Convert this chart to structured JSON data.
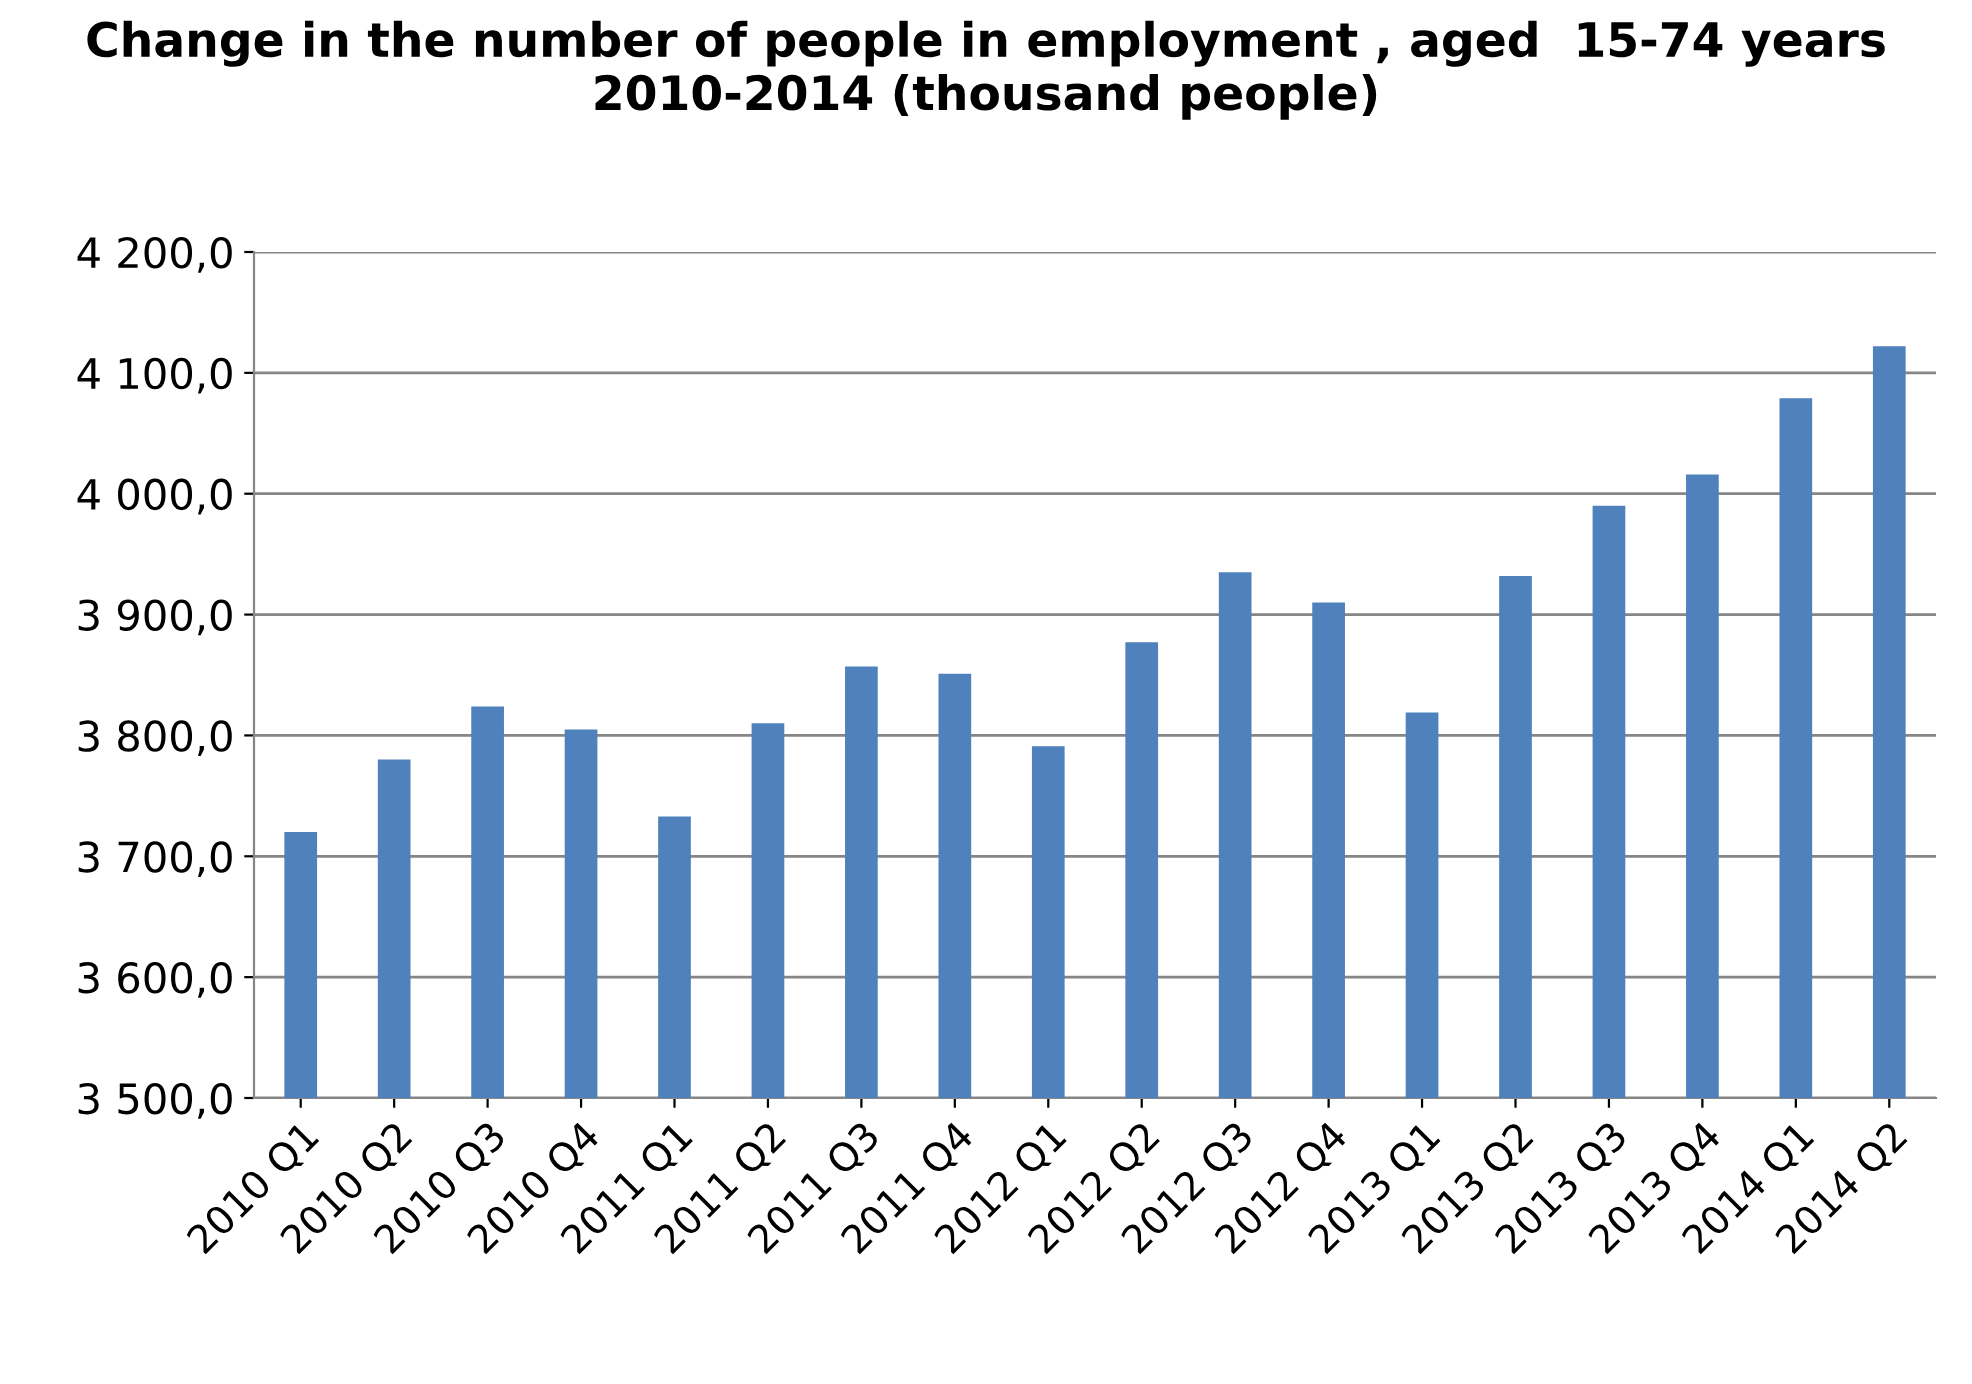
{
  "chart_data": {
    "type": "bar",
    "title": "Change in the number of people in employment , aged  15-74 years\n2010-2014 (thousand people)",
    "categories": [
      "2010 Q1",
      "2010 Q2",
      "2010 Q3",
      "2010 Q4",
      "2011 Q1",
      "2011 Q2",
      "2011 Q3",
      "2011 Q4",
      "2012 Q1",
      "2012 Q2",
      "2012 Q3",
      "2012 Q4",
      "2013 Q1",
      "2013 Q2",
      "2013 Q3",
      "2013 Q4",
      "2014 Q1",
      "2014 Q2"
    ],
    "values": [
      3720,
      3780,
      3824,
      3805,
      3733,
      3810,
      3857,
      3851,
      3791,
      3877,
      3935,
      3910,
      3819,
      3932,
      3990,
      4016,
      4079,
      4122
    ],
    "color": "#4f81bd",
    "ylim": [
      3500,
      4200
    ],
    "yticks": [
      {
        "value": 3500,
        "label": "3 500,0"
      },
      {
        "value": 3600,
        "label": "3 600,0"
      },
      {
        "value": 3700,
        "label": "3 700,0"
      },
      {
        "value": 3800,
        "label": "3 800,0"
      },
      {
        "value": 3900,
        "label": "3 900,0"
      },
      {
        "value": 4000,
        "label": "4 000,0"
      },
      {
        "value": 4100,
        "label": "4 100,0"
      },
      {
        "value": 4200,
        "label": "4 200,0"
      }
    ],
    "grid": "y"
  }
}
